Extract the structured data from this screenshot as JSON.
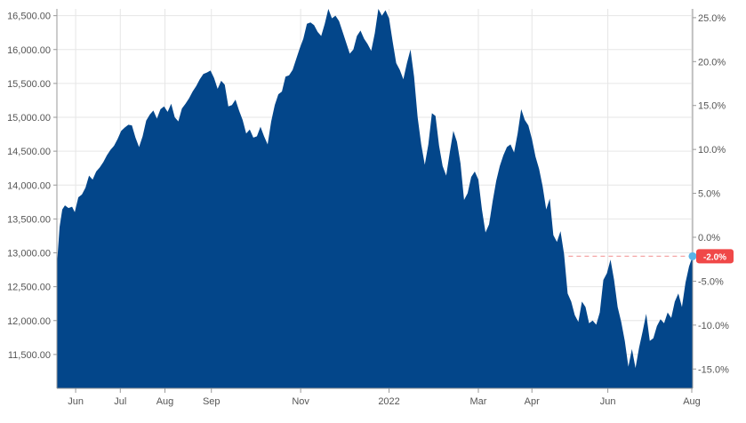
{
  "chart_data": {
    "type": "area",
    "title": "",
    "xlabel": "",
    "ylabel": "",
    "ylim": [
      11000,
      16600
    ],
    "y2lim": [
      -17.2,
      26.0
    ],
    "grid": true,
    "legend": "none",
    "colors": {
      "area": "#03468a",
      "grid": "#e6e6e6",
      "axis": "#999999",
      "last_badge": "#f04848",
      "last_line": "#f29c9c",
      "last_dot": "#5ab4e8"
    },
    "left_ticks": [
      {
        "value": 16500,
        "label": "16,500.00"
      },
      {
        "value": 16000,
        "label": "16,000.00"
      },
      {
        "value": 15500,
        "label": "15,500.00"
      },
      {
        "value": 15000,
        "label": "15,000.00"
      },
      {
        "value": 14500,
        "label": "14,500.00"
      },
      {
        "value": 14000,
        "label": "14,000.00"
      },
      {
        "value": 13500,
        "label": "13,500.00"
      },
      {
        "value": 13000,
        "label": "13,000.00"
      },
      {
        "value": 12500,
        "label": "12,500.00"
      },
      {
        "value": 12000,
        "label": "12,000.00"
      },
      {
        "value": 11500,
        "label": "11,500.00"
      }
    ],
    "right_ticks": [
      {
        "value": 25,
        "label": "25.0%"
      },
      {
        "value": 20,
        "label": "20.0%"
      },
      {
        "value": 15,
        "label": "15.0%"
      },
      {
        "value": 10,
        "label": "10.0%"
      },
      {
        "value": 5,
        "label": "5.0%"
      },
      {
        "value": 0,
        "label": "0.0%"
      },
      {
        "value": -5,
        "label": "-5.0%"
      },
      {
        "value": -10,
        "label": "-10.0%"
      },
      {
        "value": -15,
        "label": "-15.0%"
      }
    ],
    "x_ticks": [
      {
        "t": 21,
        "label": "Jun"
      },
      {
        "t": 71,
        "label": "Jul"
      },
      {
        "t": 121,
        "label": "Aug"
      },
      {
        "t": 173,
        "label": "Sep"
      },
      {
        "t": 273,
        "label": "Nov"
      },
      {
        "t": 372,
        "label": "2022"
      },
      {
        "t": 472,
        "label": "Mar"
      },
      {
        "t": 532,
        "label": "Apr"
      },
      {
        "t": 617,
        "label": "Jun"
      },
      {
        "t": 711,
        "label": "Aug"
      }
    ],
    "xlim": [
      0,
      712
    ],
    "last_value": 12950,
    "last_label": "-2.0%",
    "points": [
      [
        0,
        12820
      ],
      [
        3,
        13380
      ],
      [
        6,
        13640
      ],
      [
        9,
        13700
      ],
      [
        13,
        13660
      ],
      [
        17,
        13680
      ],
      [
        20,
        13600
      ],
      [
        24,
        13820
      ],
      [
        28,
        13860
      ],
      [
        32,
        13960
      ],
      [
        36,
        14140
      ],
      [
        40,
        14080
      ],
      [
        44,
        14200
      ],
      [
        48,
        14260
      ],
      [
        52,
        14340
      ],
      [
        56,
        14440
      ],
      [
        60,
        14520
      ],
      [
        64,
        14580
      ],
      [
        68,
        14680
      ],
      [
        72,
        14800
      ],
      [
        76,
        14850
      ],
      [
        80,
        14890
      ],
      [
        84,
        14880
      ],
      [
        88,
        14700
      ],
      [
        92,
        14560
      ],
      [
        96,
        14720
      ],
      [
        100,
        14950
      ],
      [
        104,
        15040
      ],
      [
        108,
        15100
      ],
      [
        112,
        14980
      ],
      [
        116,
        15120
      ],
      [
        120,
        15160
      ],
      [
        124,
        15080
      ],
      [
        128,
        15200
      ],
      [
        132,
        15000
      ],
      [
        136,
        14940
      ],
      [
        140,
        15130
      ],
      [
        144,
        15200
      ],
      [
        148,
        15280
      ],
      [
        152,
        15380
      ],
      [
        156,
        15460
      ],
      [
        160,
        15560
      ],
      [
        164,
        15640
      ],
      [
        168,
        15660
      ],
      [
        172,
        15690
      ],
      [
        176,
        15580
      ],
      [
        180,
        15420
      ],
      [
        184,
        15540
      ],
      [
        188,
        15480
      ],
      [
        192,
        15160
      ],
      [
        196,
        15180
      ],
      [
        200,
        15260
      ],
      [
        204,
        15100
      ],
      [
        208,
        14960
      ],
      [
        212,
        14760
      ],
      [
        216,
        14820
      ],
      [
        220,
        14700
      ],
      [
        224,
        14720
      ],
      [
        228,
        14860
      ],
      [
        232,
        14720
      ],
      [
        236,
        14600
      ],
      [
        240,
        14940
      ],
      [
        244,
        15180
      ],
      [
        248,
        15340
      ],
      [
        252,
        15380
      ],
      [
        256,
        15600
      ],
      [
        260,
        15620
      ],
      [
        264,
        15700
      ],
      [
        268,
        15860
      ],
      [
        272,
        16020
      ],
      [
        276,
        16160
      ],
      [
        280,
        16380
      ],
      [
        284,
        16400
      ],
      [
        288,
        16360
      ],
      [
        292,
        16260
      ],
      [
        296,
        16200
      ],
      [
        300,
        16380
      ],
      [
        304,
        16600
      ],
      [
        308,
        16460
      ],
      [
        312,
        16500
      ],
      [
        316,
        16420
      ],
      [
        320,
        16260
      ],
      [
        324,
        16100
      ],
      [
        328,
        15940
      ],
      [
        332,
        16000
      ],
      [
        336,
        16200
      ],
      [
        340,
        16280
      ],
      [
        344,
        16160
      ],
      [
        348,
        16080
      ],
      [
        352,
        15980
      ],
      [
        356,
        16240
      ],
      [
        360,
        16600
      ],
      [
        364,
        16500
      ],
      [
        368,
        16580
      ],
      [
        372,
        16460
      ],
      [
        376,
        16120
      ],
      [
        380,
        15800
      ],
      [
        384,
        15700
      ],
      [
        388,
        15560
      ],
      [
        392,
        15800
      ],
      [
        396,
        16000
      ],
      [
        400,
        15600
      ],
      [
        404,
        15000
      ],
      [
        408,
        14600
      ],
      [
        412,
        14300
      ],
      [
        416,
        14600
      ],
      [
        420,
        15060
      ],
      [
        424,
        15020
      ],
      [
        428,
        14580
      ],
      [
        432,
        14280
      ],
      [
        436,
        14140
      ],
      [
        440,
        14480
      ],
      [
        444,
        14800
      ],
      [
        448,
        14640
      ],
      [
        452,
        14320
      ],
      [
        456,
        13780
      ],
      [
        460,
        13880
      ],
      [
        464,
        14120
      ],
      [
        468,
        14200
      ],
      [
        472,
        14080
      ],
      [
        476,
        13640
      ],
      [
        480,
        13300
      ],
      [
        484,
        13420
      ],
      [
        488,
        13760
      ],
      [
        492,
        14060
      ],
      [
        496,
        14280
      ],
      [
        500,
        14440
      ],
      [
        504,
        14560
      ],
      [
        508,
        14600
      ],
      [
        512,
        14480
      ],
      [
        516,
        14760
      ],
      [
        520,
        15120
      ],
      [
        524,
        14960
      ],
      [
        528,
        14880
      ],
      [
        532,
        14680
      ],
      [
        536,
        14420
      ],
      [
        540,
        14240
      ],
      [
        544,
        13980
      ],
      [
        548,
        13640
      ],
      [
        552,
        13800
      ],
      [
        556,
        13260
      ],
      [
        560,
        13160
      ],
      [
        564,
        13320
      ],
      [
        568,
        12980
      ],
      [
        572,
        12400
      ],
      [
        576,
        12280
      ],
      [
        580,
        12080
      ],
      [
        584,
        11980
      ],
      [
        588,
        12280
      ],
      [
        592,
        12200
      ],
      [
        596,
        11960
      ],
      [
        600,
        12000
      ],
      [
        604,
        11940
      ],
      [
        608,
        12120
      ],
      [
        612,
        12600
      ],
      [
        616,
        12700
      ],
      [
        620,
        12900
      ],
      [
        624,
        12600
      ],
      [
        628,
        12200
      ],
      [
        632,
        11980
      ],
      [
        636,
        11700
      ],
      [
        640,
        11320
      ],
      [
        644,
        11580
      ],
      [
        648,
        11300
      ],
      [
        652,
        11600
      ],
      [
        656,
        11840
      ],
      [
        660,
        12100
      ],
      [
        664,
        11700
      ],
      [
        668,
        11740
      ],
      [
        672,
        11920
      ],
      [
        676,
        12020
      ],
      [
        680,
        11960
      ],
      [
        684,
        12120
      ],
      [
        688,
        12040
      ],
      [
        692,
        12280
      ],
      [
        696,
        12400
      ],
      [
        700,
        12200
      ],
      [
        704,
        12560
      ],
      [
        708,
        12800
      ],
      [
        712,
        12950
      ]
    ]
  }
}
